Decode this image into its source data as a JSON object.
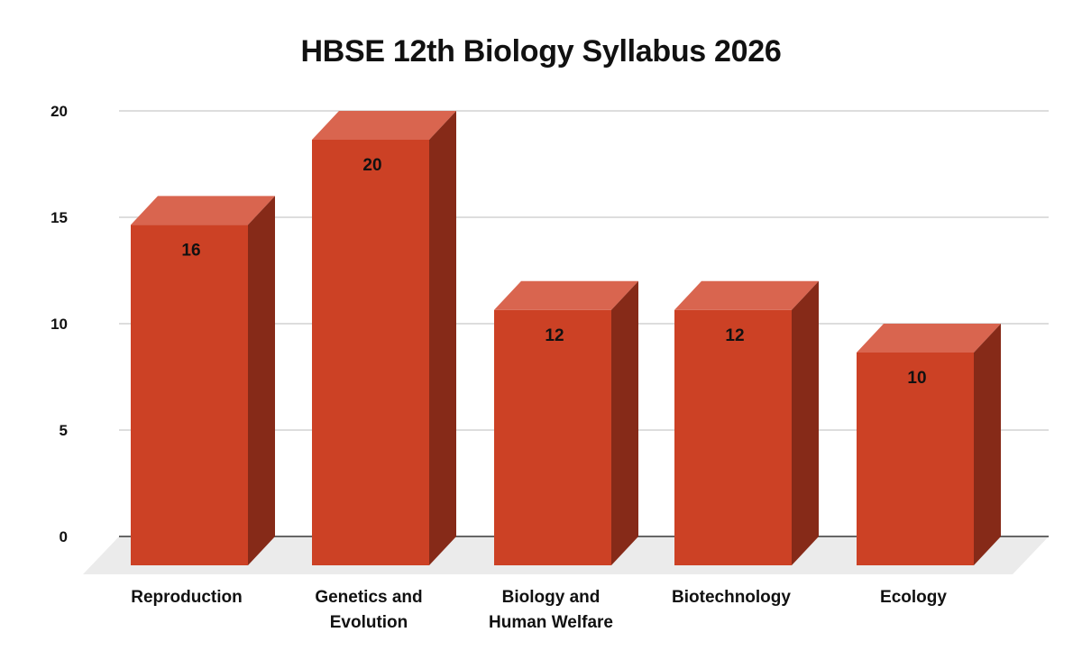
{
  "chart_data": {
    "type": "bar",
    "style": "3d-column",
    "title": "HBSE 12th Biology Syllabus 2026",
    "xlabel": "",
    "ylabel": "",
    "categories": [
      "Reproduction",
      "Genetics and Evolution",
      "Biology and Human Welfare",
      "Biotechnology",
      "Ecology"
    ],
    "category_lines": [
      [
        "Reproduction"
      ],
      [
        "Genetics and",
        "Evolution"
      ],
      [
        "Biology and",
        "Human Welfare"
      ],
      [
        "Biotechnology"
      ],
      [
        "Ecology"
      ]
    ],
    "values": [
      16,
      20,
      12,
      12,
      10
    ],
    "data_labels": [
      "16",
      "20",
      "12",
      "12",
      "10"
    ],
    "ylim": [
      0,
      20
    ],
    "yticks": [
      0,
      5,
      10,
      15,
      20
    ],
    "ytick_labels": [
      "0",
      "5",
      "10",
      "15",
      "20"
    ],
    "grid": true,
    "legend": "none",
    "colors": {
      "bar_front": "#cc4125",
      "bar_top": "#d9654f",
      "bar_side": "#862a18",
      "floor": "#ebebeb",
      "gridline": "#dddddd",
      "axis": "#666666"
    }
  }
}
